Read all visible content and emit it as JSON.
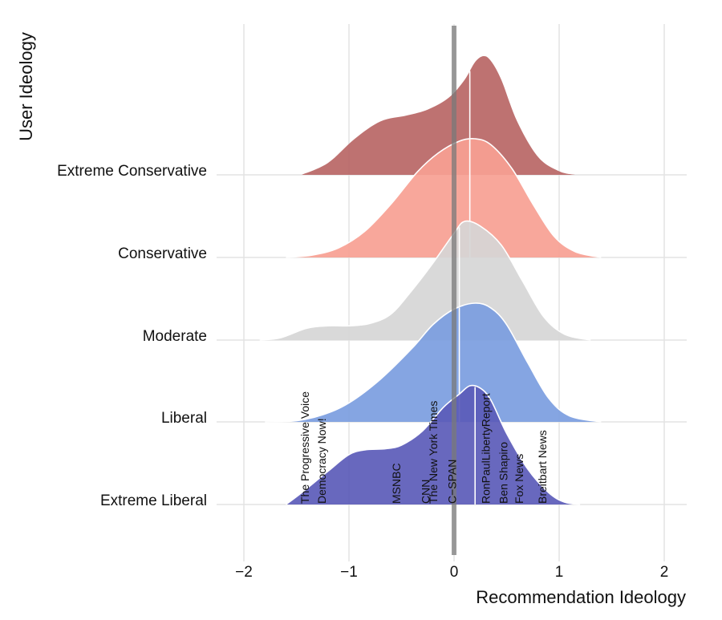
{
  "chart_data": {
    "type": "ridgeline",
    "xlabel": "Recommendation Ideology",
    "ylabel": "User Ideology",
    "xlim": [
      -2,
      2.2
    ],
    "x_ticks": [
      -2,
      -1,
      0,
      1,
      2
    ],
    "x_tick_labels": [
      "−2",
      "−1",
      "0",
      "1",
      "2"
    ],
    "grid": true,
    "reference_line_x": 0,
    "series": [
      {
        "name": "Extreme Liberal",
        "color": "#5b5bb8",
        "median": 0.2,
        "profile": [
          [
            -1.6,
            0
          ],
          [
            -1.45,
            0.1
          ],
          [
            -1.2,
            0.28
          ],
          [
            -1.0,
            0.42
          ],
          [
            -0.85,
            0.46
          ],
          [
            -0.65,
            0.47
          ],
          [
            -0.5,
            0.5
          ],
          [
            -0.3,
            0.62
          ],
          [
            -0.1,
            0.82
          ],
          [
            0.05,
            0.93
          ],
          [
            0.15,
            1.0
          ],
          [
            0.25,
            0.98
          ],
          [
            0.35,
            0.88
          ],
          [
            0.5,
            0.6
          ],
          [
            0.7,
            0.3
          ],
          [
            0.9,
            0.1
          ],
          [
            1.05,
            0.02
          ],
          [
            1.2,
            0
          ]
        ]
      },
      {
        "name": "Liberal",
        "color": "#7b9de0",
        "median": 0.05,
        "profile": [
          [
            -1.8,
            0
          ],
          [
            -1.5,
            0.01
          ],
          [
            -1.25,
            0.06
          ],
          [
            -1.0,
            0.16
          ],
          [
            -0.7,
            0.36
          ],
          [
            -0.4,
            0.62
          ],
          [
            -0.2,
            0.82
          ],
          [
            0.0,
            0.95
          ],
          [
            0.2,
            1.0
          ],
          [
            0.35,
            0.96
          ],
          [
            0.5,
            0.82
          ],
          [
            0.7,
            0.5
          ],
          [
            0.9,
            0.2
          ],
          [
            1.1,
            0.05
          ],
          [
            1.4,
            0
          ]
        ]
      },
      {
        "name": "Moderate",
        "color": "#d6d6d6",
        "median": 0.05,
        "profile": [
          [
            -1.85,
            0
          ],
          [
            -1.65,
            0.02
          ],
          [
            -1.4,
            0.1
          ],
          [
            -1.2,
            0.12
          ],
          [
            -1.0,
            0.12
          ],
          [
            -0.8,
            0.14
          ],
          [
            -0.6,
            0.22
          ],
          [
            -0.4,
            0.42
          ],
          [
            -0.2,
            0.65
          ],
          [
            0.0,
            0.9
          ],
          [
            0.1,
            1.0
          ],
          [
            0.25,
            0.96
          ],
          [
            0.45,
            0.8
          ],
          [
            0.65,
            0.5
          ],
          [
            0.85,
            0.2
          ],
          [
            1.05,
            0.05
          ],
          [
            1.3,
            0
          ]
        ]
      },
      {
        "name": "Conservative",
        "color": "#f7a093",
        "median": 0.15,
        "profile": [
          [
            -1.6,
            0
          ],
          [
            -1.35,
            0.02
          ],
          [
            -1.1,
            0.08
          ],
          [
            -0.85,
            0.22
          ],
          [
            -0.6,
            0.45
          ],
          [
            -0.35,
            0.72
          ],
          [
            -0.15,
            0.88
          ],
          [
            0.05,
            0.98
          ],
          [
            0.2,
            1.0
          ],
          [
            0.35,
            0.95
          ],
          [
            0.55,
            0.75
          ],
          [
            0.75,
            0.45
          ],
          [
            0.95,
            0.18
          ],
          [
            1.15,
            0.05
          ],
          [
            1.4,
            0
          ]
        ]
      },
      {
        "name": "Extreme Conservative",
        "color": "#b86665",
        "median": 0.15,
        "profile": [
          [
            -1.45,
            0
          ],
          [
            -1.2,
            0.1
          ],
          [
            -0.95,
            0.3
          ],
          [
            -0.7,
            0.45
          ],
          [
            -0.45,
            0.5
          ],
          [
            -0.25,
            0.55
          ],
          [
            -0.05,
            0.65
          ],
          [
            0.1,
            0.8
          ],
          [
            0.2,
            0.95
          ],
          [
            0.28,
            1.0
          ],
          [
            0.35,
            0.96
          ],
          [
            0.45,
            0.8
          ],
          [
            0.6,
            0.45
          ],
          [
            0.8,
            0.15
          ],
          [
            1.0,
            0.03
          ],
          [
            1.15,
            0
          ]
        ]
      }
    ],
    "outlets": [
      {
        "label": "The Progressive Voice",
        "x": -1.42
      },
      {
        "label": "Democracy Now!",
        "x": -1.26
      },
      {
        "label": "MSNBC",
        "x": -0.55
      },
      {
        "label": "CNN",
        "x": -0.27
      },
      {
        "label": "The New York Times",
        "x": -0.2
      },
      {
        "label": "C−SPAN",
        "x": -0.02
      },
      {
        "label": "RonPaulLibertyReport",
        "x": 0.3
      },
      {
        "label": "Ben Shapiro",
        "x": 0.47
      },
      {
        "label": "Fox News",
        "x": 0.62
      },
      {
        "label": "Breitbart News",
        "x": 0.84
      }
    ]
  }
}
